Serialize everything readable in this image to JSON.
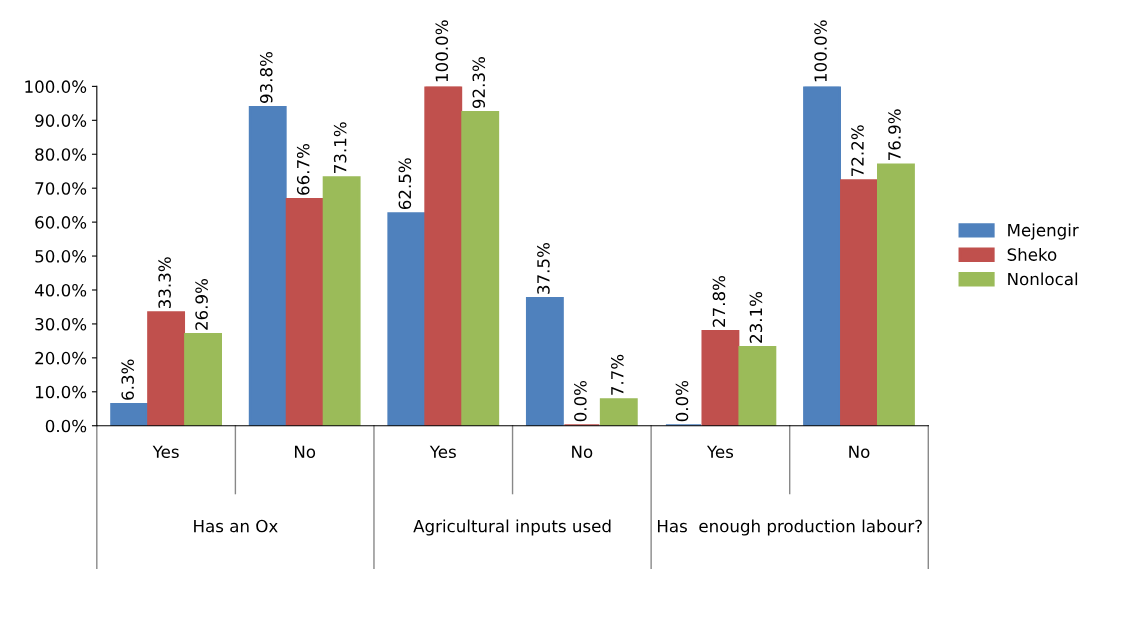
{
  "chart_data": {
    "type": "bar",
    "categories": [
      "Yes",
      "No",
      "Yes",
      "No",
      "Yes",
      "No"
    ],
    "series": [
      {
        "name": "Mejengir",
        "color": "#4f81bd",
        "values": [
          6.3,
          93.8,
          62.5,
          37.5,
          0.0,
          100.0
        ],
        "value_labels": [
          "6.3%",
          "93.8%",
          "62.5%",
          "37.5%",
          "0.0%",
          "100.0%"
        ]
      },
      {
        "name": "Sheko",
        "color": "#c0504d",
        "values": [
          33.3,
          66.7,
          100.0,
          0.0,
          27.8,
          72.2
        ],
        "value_labels": [
          "33.3%",
          "66.7%",
          "100.0%",
          "0.0%",
          "27.8%",
          "72.2%"
        ]
      },
      {
        "name": "Nonlocal",
        "color": "#9bbb59",
        "values": [
          26.9,
          73.1,
          92.3,
          7.7,
          23.1,
          76.9
        ],
        "value_labels": [
          "26.9%",
          "73.1%",
          "92.3%",
          "7.7%",
          "23.1%",
          "76.9%"
        ]
      }
    ],
    "annotations": [
      "Has an Ox",
      "Agricultural inputs used",
      "Has  enough production labour?"
    ],
    "ylim": [
      0,
      100
    ],
    "yticks": [
      {
        "value": 0,
        "label": "0.0%"
      },
      {
        "value": 10,
        "label": "10.0%"
      },
      {
        "value": 20,
        "label": "20.0%"
      },
      {
        "value": 30,
        "label": "30.0%"
      },
      {
        "value": 40,
        "label": "40.0%"
      },
      {
        "value": 50,
        "label": "50.0%"
      },
      {
        "value": 60,
        "label": "60.0%"
      },
      {
        "value": 70,
        "label": "70.0%"
      },
      {
        "value": 80,
        "label": "80.0%"
      },
      {
        "value": 90,
        "label": "90.0%"
      },
      {
        "value": 100,
        "label": "100.0%"
      }
    ],
    "grid": false,
    "legend": "right"
  }
}
